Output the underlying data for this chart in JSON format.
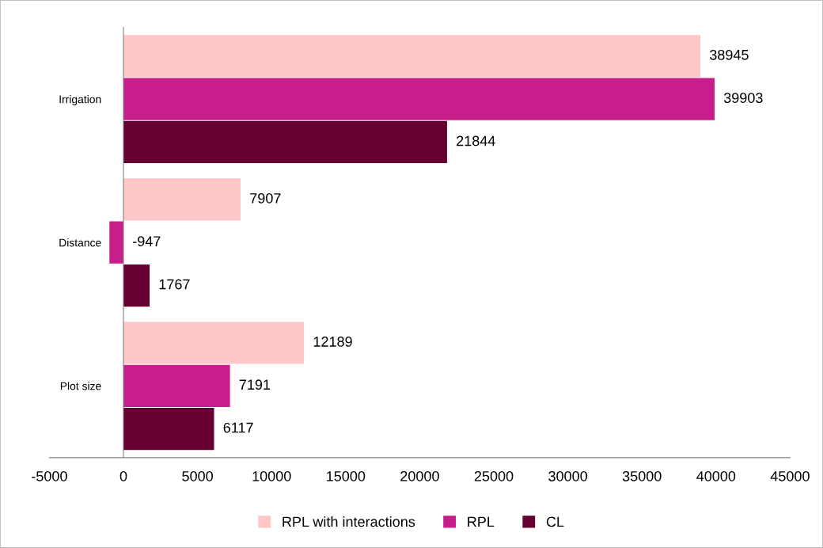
{
  "chart_data": {
    "type": "bar",
    "orientation": "horizontal",
    "categories": [
      "Irrigation",
      "Distance",
      "Plot size"
    ],
    "series": [
      {
        "name": "RPL with interactions",
        "color": "#ffc7c7",
        "values": [
          38945,
          7907,
          12189
        ]
      },
      {
        "name": "RPL",
        "color": "#c71e8c",
        "values": [
          39903,
          -947,
          7191
        ]
      },
      {
        "name": "CL",
        "color": "#650030",
        "values": [
          21844,
          1767,
          6117
        ]
      }
    ],
    "xlim": [
      -5000,
      45000
    ],
    "xticks": [
      -5000,
      0,
      5000,
      10000,
      15000,
      20000,
      25000,
      30000,
      35000,
      40000,
      45000
    ],
    "data_labels": true,
    "legend": "bottom"
  }
}
